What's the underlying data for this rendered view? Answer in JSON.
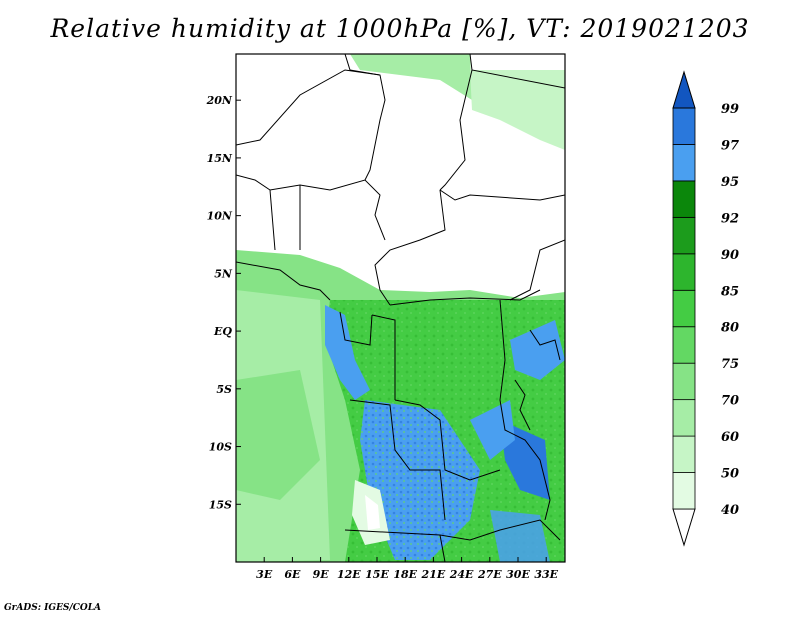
{
  "title": "Relative humidity at 1000hPa [%], VT: 2019021203",
  "credit": "GrADS: IGES/COLA",
  "map": {
    "lon_range": [
      0,
      35
    ],
    "lat_range": [
      -20,
      24
    ],
    "lon_ticks": [
      {
        "value": 3,
        "label": "3E"
      },
      {
        "value": 6,
        "label": "6E"
      },
      {
        "value": 9,
        "label": "9E"
      },
      {
        "value": 12,
        "label": "12E"
      },
      {
        "value": 15,
        "label": "15E"
      },
      {
        "value": 18,
        "label": "18E"
      },
      {
        "value": 21,
        "label": "21E"
      },
      {
        "value": 24,
        "label": "24E"
      },
      {
        "value": 27,
        "label": "27E"
      },
      {
        "value": 30,
        "label": "30E"
      },
      {
        "value": 33,
        "label": "33E"
      }
    ],
    "lat_ticks": [
      {
        "value": 20,
        "label": "20N"
      },
      {
        "value": 15,
        "label": "15N"
      },
      {
        "value": 10,
        "label": "10N"
      },
      {
        "value": 5,
        "label": "5N"
      },
      {
        "value": 0,
        "label": "EQ"
      },
      {
        "value": -5,
        "label": "5S"
      },
      {
        "value": -10,
        "label": "10S"
      },
      {
        "value": -15,
        "label": "15S"
      }
    ]
  },
  "colorbar": {
    "levels": [
      "40",
      "50",
      "60",
      "70",
      "75",
      "80",
      "85",
      "90",
      "92",
      "95",
      "97",
      "99"
    ],
    "colors": [
      "#ffffff",
      "#e3fbe3",
      "#c6f5c6",
      "#a6eda6",
      "#86e386",
      "#63d863",
      "#44cc44",
      "#2db52d",
      "#1c9c1c",
      "#0b870b",
      "#4a9ff0",
      "#2a78dc",
      "#1256c0"
    ]
  },
  "colors": {
    "sea": "#86e386",
    "land_green": "#44cc44",
    "blue": "#4a9ff0",
    "border": "#000000"
  }
}
